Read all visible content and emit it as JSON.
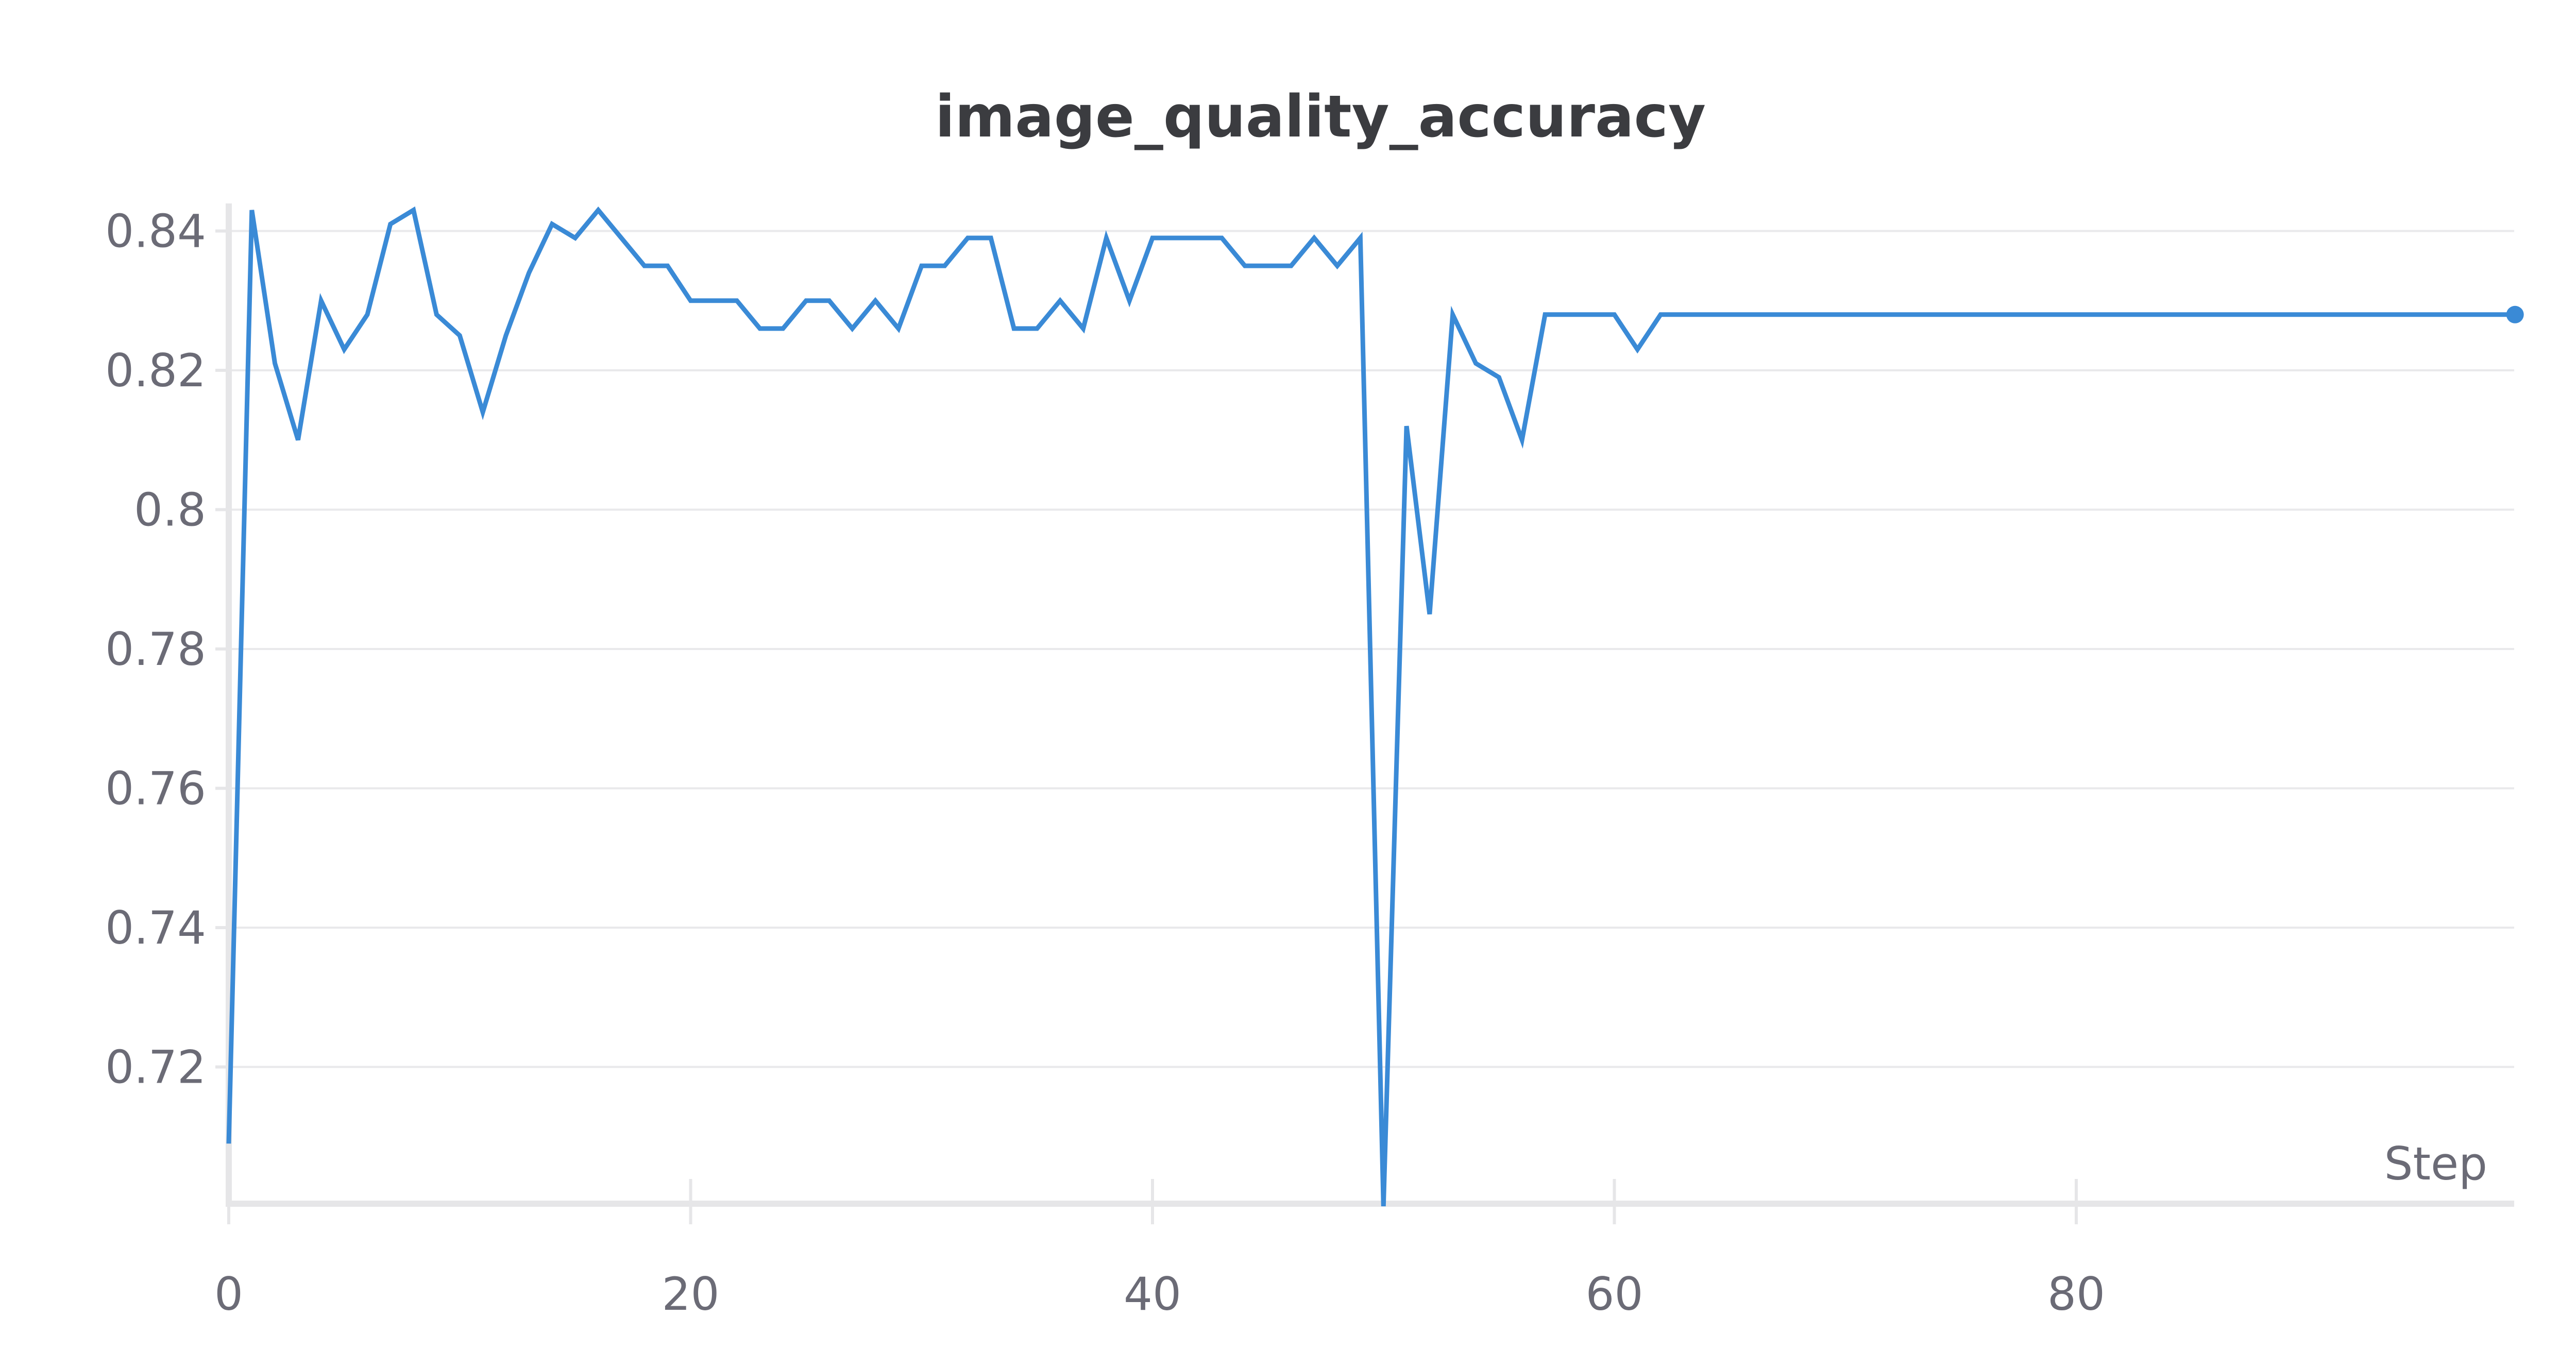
{
  "chart_data": {
    "type": "line",
    "title": "image_quality_accuracy",
    "xlabel": "Step",
    "ylabel": "",
    "xlim": [
      0,
      99
    ],
    "ylim": [
      0.7,
      0.843
    ],
    "x_ticks": [
      "0",
      "20",
      "40",
      "60",
      "80"
    ],
    "y_ticks": [
      "0.72",
      "0.74",
      "0.76",
      "0.78",
      "0.8",
      "0.82",
      "0.84"
    ],
    "grid": true,
    "legend": "none",
    "series": [
      {
        "color": "#3a8ad6",
        "x": [
          0,
          1,
          2,
          3,
          4,
          5,
          6,
          7,
          8,
          9,
          10,
          11,
          12,
          13,
          14,
          15,
          16,
          17,
          18,
          19,
          20,
          21,
          22,
          23,
          24,
          25,
          26,
          27,
          28,
          29,
          30,
          31,
          32,
          33,
          34,
          35,
          36,
          37,
          38,
          39,
          40,
          41,
          42,
          43,
          44,
          45,
          46,
          47,
          48,
          49,
          50,
          51,
          52,
          53,
          54,
          55,
          56,
          57,
          58,
          59,
          60,
          61,
          62,
          63,
          64,
          65,
          66,
          67,
          68,
          69,
          70,
          71,
          72,
          73,
          74,
          75,
          76,
          77,
          78,
          79,
          80,
          81,
          82,
          83,
          84,
          85,
          86,
          87,
          88,
          89,
          90,
          91,
          92,
          93,
          94,
          95,
          96,
          97,
          98,
          99
        ],
        "y": [
          0.709,
          0.843,
          0.821,
          0.81,
          0.83,
          0.823,
          0.828,
          0.841,
          0.843,
          0.828,
          0.825,
          0.814,
          0.825,
          0.834,
          0.841,
          0.839,
          0.843,
          0.839,
          0.835,
          0.835,
          0.83,
          0.83,
          0.83,
          0.826,
          0.826,
          0.83,
          0.83,
          0.826,
          0.83,
          0.826,
          0.835,
          0.835,
          0.839,
          0.839,
          0.826,
          0.826,
          0.83,
          0.826,
          0.839,
          0.83,
          0.839,
          0.839,
          0.839,
          0.839,
          0.835,
          0.835,
          0.835,
          0.839,
          0.835,
          0.839,
          0.7,
          0.812,
          0.785,
          0.828,
          0.821,
          0.819,
          0.81,
          0.828,
          0.828,
          0.828,
          0.828,
          0.823,
          0.828,
          0.828,
          0.828,
          0.828,
          0.828,
          0.828,
          0.828,
          0.828,
          0.828,
          0.828,
          0.828,
          0.828,
          0.828,
          0.828,
          0.828,
          0.828,
          0.828,
          0.828,
          0.828,
          0.828,
          0.828,
          0.828,
          0.828,
          0.828,
          0.828,
          0.828,
          0.828,
          0.828,
          0.828,
          0.828,
          0.828,
          0.828,
          0.828,
          0.828,
          0.828,
          0.828,
          0.828,
          0.828
        ]
      }
    ]
  }
}
